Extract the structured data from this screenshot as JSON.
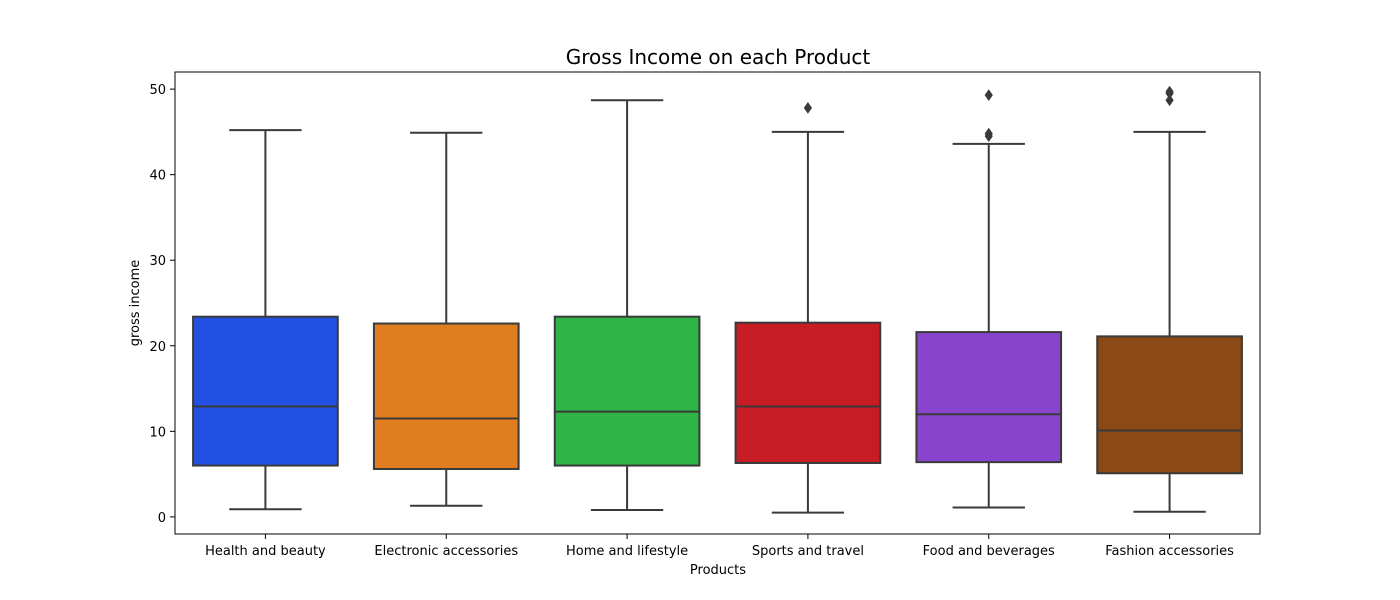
{
  "chart_data": {
    "type": "box",
    "title": "Gross Income on each Product",
    "xlabel": "Products",
    "ylabel": "gross income",
    "ylim": [
      -2,
      52
    ],
    "yticks": [
      0,
      10,
      20,
      30,
      40,
      50
    ],
    "grid": false,
    "categories": [
      "Health and beauty",
      "Electronic accessories",
      "Home and lifestyle",
      "Sports and travel",
      "Food and beverages",
      "Fashion accessories"
    ],
    "series": [
      {
        "colour": "#2250e3",
        "whisker_low": 0.9,
        "q1": 6.0,
        "median": 12.9,
        "q3": 23.4,
        "whisker_high": 45.2,
        "outliers": []
      },
      {
        "colour": "#e07d1f",
        "whisker_low": 1.3,
        "q1": 5.6,
        "median": 11.5,
        "q3": 22.6,
        "whisker_high": 44.9,
        "outliers": []
      },
      {
        "colour": "#2fb447",
        "whisker_low": 0.8,
        "q1": 6.0,
        "median": 12.3,
        "q3": 23.4,
        "whisker_high": 48.7,
        "outliers": []
      },
      {
        "colour": "#c81c25",
        "whisker_low": 0.5,
        "q1": 6.3,
        "median": 12.9,
        "q3": 22.7,
        "whisker_high": 45.0,
        "outliers": [
          47.8
        ]
      },
      {
        "colour": "#8944cd",
        "whisker_low": 1.1,
        "q1": 6.4,
        "median": 12.0,
        "q3": 21.6,
        "whisker_high": 43.6,
        "outliers": [
          44.5,
          44.8,
          49.3
        ]
      },
      {
        "colour": "#8b4916",
        "whisker_low": 0.6,
        "q1": 5.1,
        "median": 10.1,
        "q3": 21.1,
        "whisker_high": 45.0,
        "outliers": [
          48.7,
          49.5,
          49.7
        ]
      }
    ]
  }
}
